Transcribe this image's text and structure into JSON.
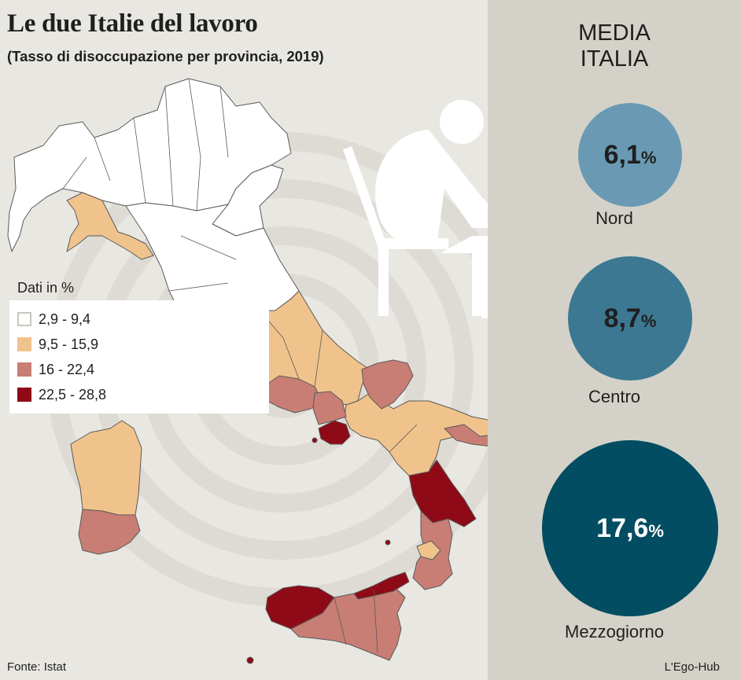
{
  "title": "Le due Italie del lavoro",
  "subtitle": "(Tasso di disoccupazione per provincia, 2019)",
  "legend": {
    "title": "Dati in %",
    "items": [
      {
        "label": "2,9 - 9,4",
        "color": "#ffffff"
      },
      {
        "label": "9,5 - 15,9",
        "color": "#f0c38c"
      },
      {
        "label": "16 - 22,4",
        "color": "#c87e74"
      },
      {
        "label": "22,5 - 28,8",
        "color": "#8e0a16"
      }
    ]
  },
  "media": {
    "title_line1": "MEDIA",
    "title_line2": "ITALIA",
    "areas": [
      {
        "label": "Nord",
        "value": "6,1",
        "unit": "%",
        "color": "#6a9ab3",
        "rate": 6.1
      },
      {
        "label": "Centro",
        "value": "8,7",
        "unit": "%",
        "color": "#3c7892",
        "rate": 8.7
      },
      {
        "label": "Mezzogiorno",
        "value": "17,6",
        "unit": "%",
        "color": "#034d63",
        "rate": 17.6
      }
    ]
  },
  "source": "Fonte: Istat",
  "credit": "L'Ego-Hub"
}
